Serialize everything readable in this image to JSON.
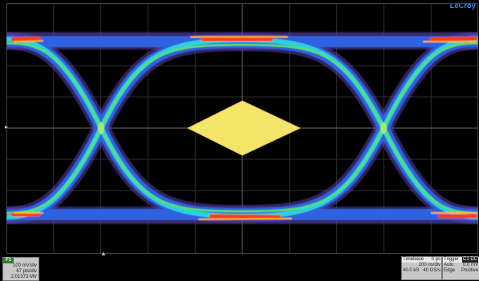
{
  "brand": "LeCroy",
  "channel": {
    "label": "F1",
    "scale": "100 mV/div",
    "points": "67 pts/div",
    "value": "2.01373 MV"
  },
  "timebase": {
    "header": "Timebase",
    "delay": "0 ps",
    "per_div": "200 ns/div",
    "samples": "40.0 kS",
    "rate": "40 GS/s"
  },
  "trigger": {
    "header": "Trigger",
    "source": "C1 DC",
    "mode": "Auto",
    "level": "0.0 mV",
    "type": "Edge",
    "slope": "Positive"
  },
  "colors": {
    "background": "#000000",
    "grid": "#3a3a3a",
    "mask": "#f5e46a",
    "brand": "#3a8cff",
    "channel_tag": "#2c7d2c"
  }
}
